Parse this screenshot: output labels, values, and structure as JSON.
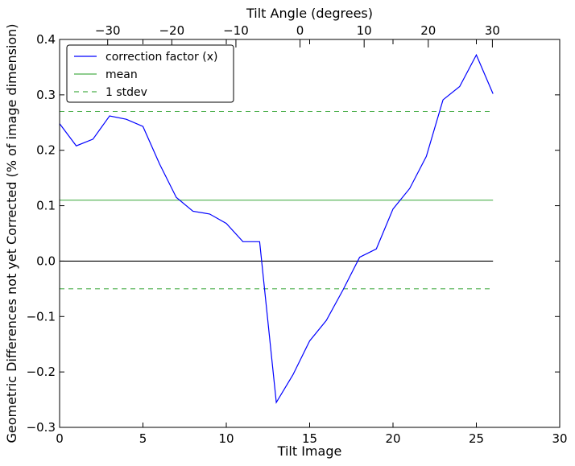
{
  "chart_data": {
    "type": "line",
    "xlabel": "Tilt Image",
    "ylabel": "Geometric Differences not yet Corrected (% of image dimension)",
    "top_xlabel": "Tilt Angle (degrees)",
    "xlim": [
      0,
      30
    ],
    "ylim": [
      -0.3,
      0.4
    ],
    "top_xlim": [
      -37.5,
      40.5
    ],
    "x_ticks": [
      0,
      5,
      10,
      15,
      20,
      25,
      30
    ],
    "x_tick_labels": [
      "0",
      "5",
      "10",
      "15",
      "20",
      "25",
      "30"
    ],
    "y_ticks": [
      -0.3,
      -0.2,
      -0.1,
      0.0,
      0.1,
      0.2,
      0.3,
      0.4
    ],
    "y_tick_labels": [
      "−0.3",
      "−0.2",
      "−0.1",
      "0.0",
      "0.1",
      "0.2",
      "0.3",
      "0.4"
    ],
    "top_ticks": [
      -30,
      -20,
      -10,
      0,
      10,
      20,
      30
    ],
    "top_tick_labels": [
      "−30",
      "−20",
      "−10",
      "0",
      "10",
      "20",
      "30"
    ],
    "grid": false,
    "legend_position": "top-left",
    "series": [
      {
        "name": "correction factor (x)",
        "color": "#0000ff",
        "style": "solid",
        "x": [
          0,
          1,
          2,
          3,
          4,
          5,
          6,
          7,
          8,
          9,
          10,
          11,
          12,
          13,
          14,
          15,
          16,
          17,
          18,
          19,
          20,
          21,
          22,
          23,
          24,
          25,
          26
        ],
        "y": [
          0.248,
          0.208,
          0.22,
          0.262,
          0.256,
          0.243,
          0.175,
          0.115,
          0.09,
          0.085,
          0.068,
          0.035,
          0.035,
          -0.255,
          -0.205,
          -0.144,
          -0.107,
          -0.052,
          0.007,
          0.022,
          0.094,
          0.131,
          0.189,
          0.291,
          0.315,
          0.372,
          0.302
        ]
      },
      {
        "name": "mean",
        "color": "#4caf4c",
        "style": "solid",
        "x": [
          0,
          26
        ],
        "y": [
          0.11,
          0.11
        ]
      },
      {
        "name": "1 stdev",
        "color": "#4caf4c",
        "style": "dashed",
        "x": [
          0,
          26
        ],
        "y": [
          0.27,
          0.27
        ]
      },
      {
        "name": "",
        "color": "#4caf4c",
        "style": "dashed",
        "x": [
          0,
          26
        ],
        "y": [
          -0.05,
          -0.05
        ]
      },
      {
        "name": "",
        "color": "#000000",
        "style": "solid",
        "x": [
          0,
          26
        ],
        "y": [
          0.0,
          0.0
        ]
      }
    ]
  }
}
